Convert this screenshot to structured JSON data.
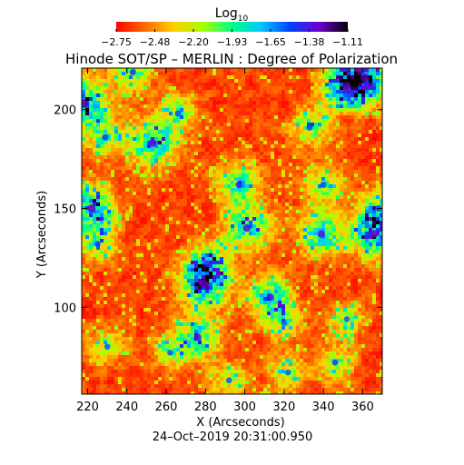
{
  "chart_data": {
    "type": "heatmap",
    "title": "Hinode SOT/SP – MERLIN : Degree of Polarization",
    "xlabel": "X (Arcseconds)",
    "ylabel": "Y (Arcseconds)",
    "timestamp": "24–Oct–2019 20:31:00.950",
    "xlim": [
      217,
      370
    ],
    "ylim": [
      56,
      221
    ],
    "x_ticks": [
      220,
      240,
      260,
      280,
      300,
      320,
      340,
      360
    ],
    "y_ticks": [
      100,
      150,
      200
    ],
    "colorbar": {
      "label_main": "Log",
      "label_sub": "10",
      "ticks": [
        "−2.75",
        "−2.48",
        "−2.20",
        "−1.93",
        "−1.65",
        "−1.38",
        "−1.11"
      ],
      "range": [
        -2.75,
        -1.11
      ],
      "colors": [
        "#ff0000",
        "#ff6a00",
        "#ffd000",
        "#a8ff00",
        "#00ff8a",
        "#00c8ff",
        "#0040ff",
        "#7000d0",
        "#000000"
      ]
    },
    "hotspots": [
      {
        "x": 218,
        "y": 203,
        "strength": 1.0
      },
      {
        "x": 222,
        "y": 150,
        "strength": 0.95
      },
      {
        "x": 229,
        "y": 186,
        "strength": 0.6
      },
      {
        "x": 225,
        "y": 132,
        "strength": 0.55
      },
      {
        "x": 243,
        "y": 219,
        "strength": 0.6
      },
      {
        "x": 253,
        "y": 183,
        "strength": 0.9
      },
      {
        "x": 266,
        "y": 198,
        "strength": 0.55
      },
      {
        "x": 279,
        "y": 112,
        "strength": 1.0
      },
      {
        "x": 281,
        "y": 122,
        "strength": 0.7
      },
      {
        "x": 276,
        "y": 85,
        "strength": 0.8
      },
      {
        "x": 262,
        "y": 77,
        "strength": 0.5
      },
      {
        "x": 297,
        "y": 162,
        "strength": 0.7
      },
      {
        "x": 301,
        "y": 140,
        "strength": 0.85
      },
      {
        "x": 313,
        "y": 105,
        "strength": 0.8
      },
      {
        "x": 320,
        "y": 92,
        "strength": 0.5
      },
      {
        "x": 333,
        "y": 191,
        "strength": 0.6
      },
      {
        "x": 340,
        "y": 162,
        "strength": 0.55
      },
      {
        "x": 339,
        "y": 137,
        "strength": 0.85
      },
      {
        "x": 352,
        "y": 212,
        "strength": 1.0
      },
      {
        "x": 361,
        "y": 216,
        "strength": 1.0
      },
      {
        "x": 366,
        "y": 137,
        "strength": 0.95
      },
      {
        "x": 368,
        "y": 150,
        "strength": 0.6
      },
      {
        "x": 346,
        "y": 72,
        "strength": 0.55
      },
      {
        "x": 292,
        "y": 63,
        "strength": 0.5
      },
      {
        "x": 230,
        "y": 80,
        "strength": 0.5
      },
      {
        "x": 322,
        "y": 67,
        "strength": 0.5
      },
      {
        "x": 352,
        "y": 94,
        "strength": 0.5
      }
    ]
  }
}
